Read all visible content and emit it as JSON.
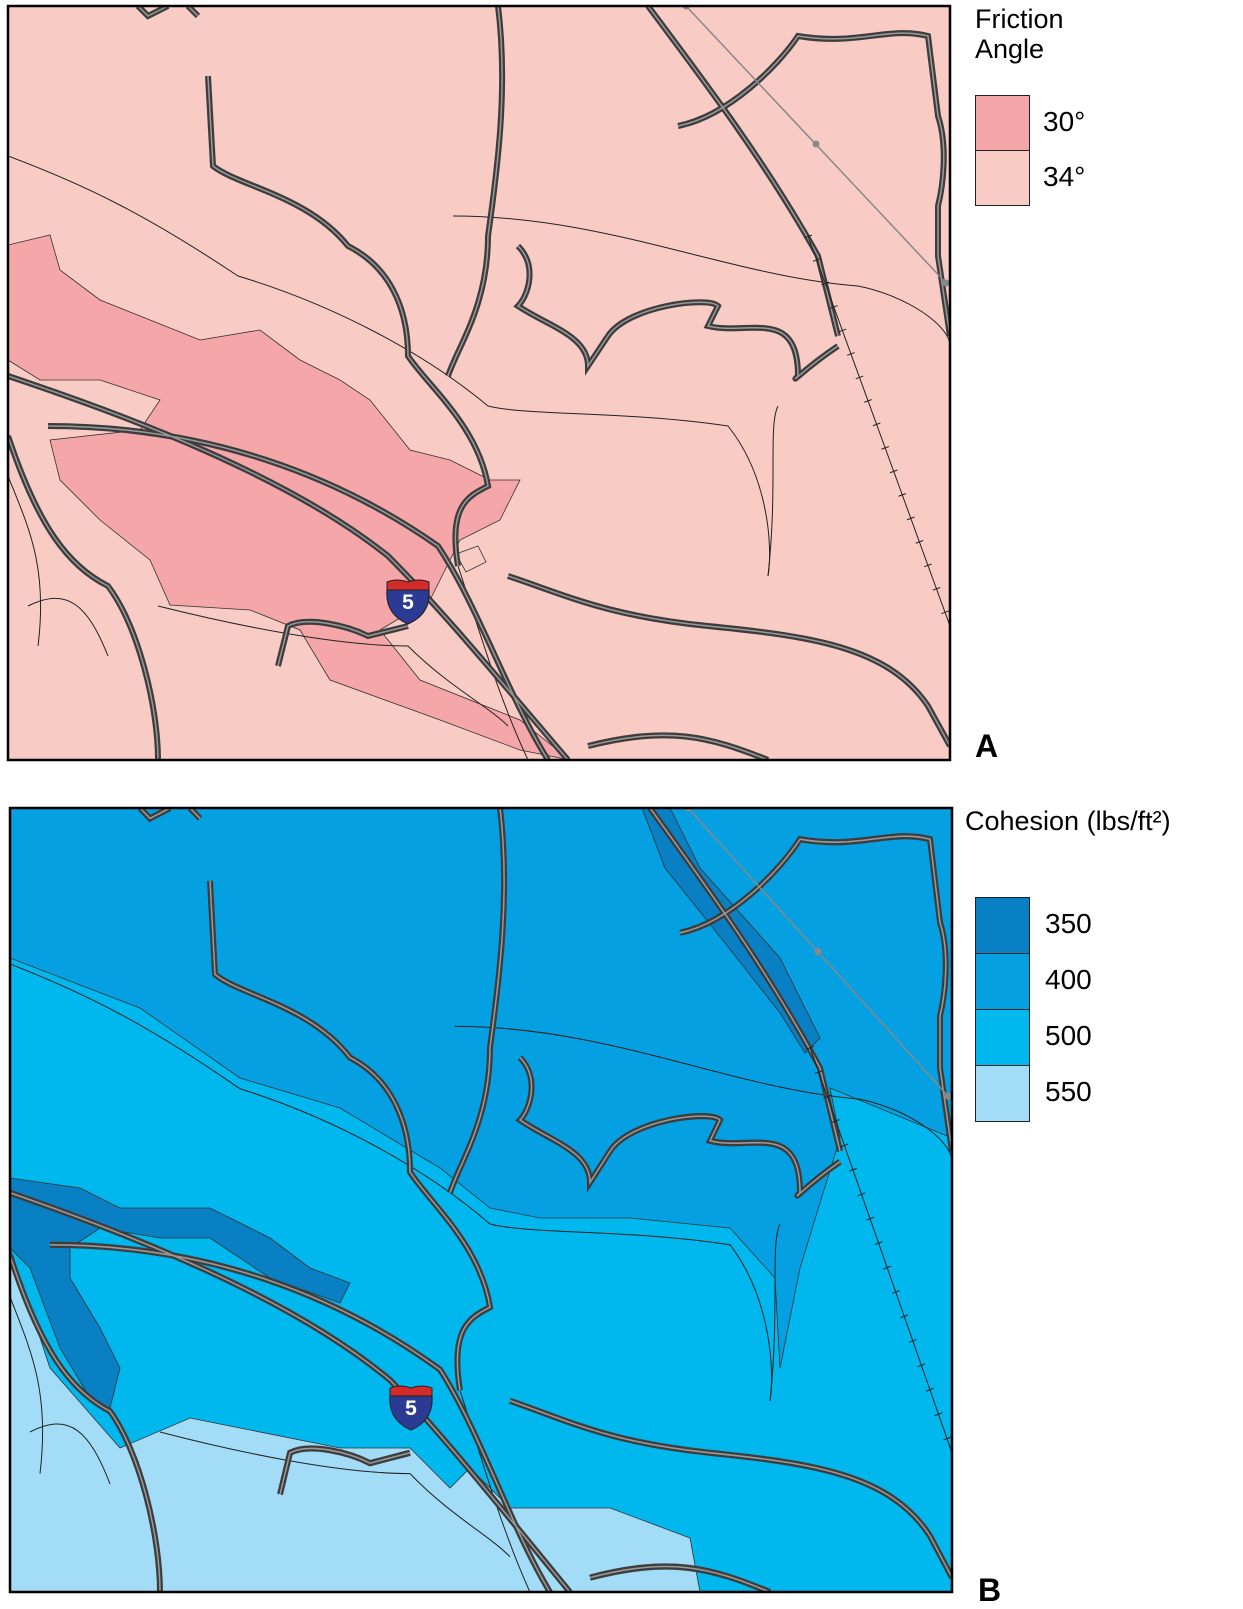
{
  "panels": [
    {
      "label": "A",
      "legend_title": "Friction Angle",
      "shield": "5",
      "legend": [
        {
          "label": "30°",
          "color": "#f4a6a8"
        },
        {
          "label": "34°",
          "color": "#f9cbc5"
        }
      ]
    },
    {
      "label": "B",
      "legend_title": "Cohesion (lbs/ft²)",
      "shield": "5",
      "legend": [
        {
          "label": "350",
          "color": "#0a80c4"
        },
        {
          "label": "400",
          "color": "#05a0e2"
        },
        {
          "label": "500",
          "color": "#00b8ee"
        },
        {
          "label": "550",
          "color": "#a3dcf7"
        }
      ]
    }
  ]
}
